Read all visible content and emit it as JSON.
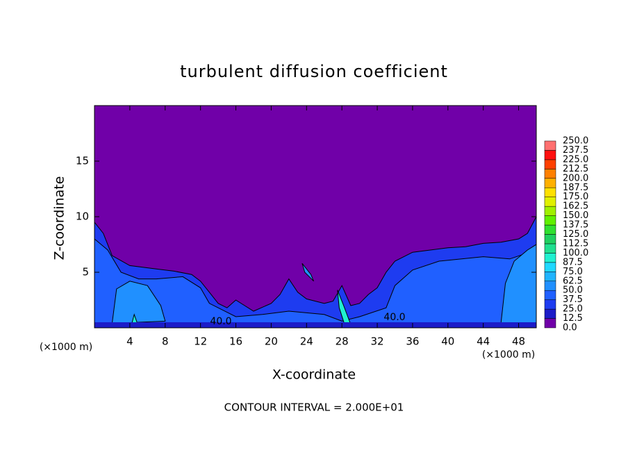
{
  "chart_data": {
    "type": "contour",
    "title": "turbulent diffusion coefficient",
    "x_label": "X-coordinate",
    "y_label": "Z-coordinate",
    "x_unit_left": "(×1000 m)",
    "x_unit_right": "(×1000 m)",
    "footer": "CONTOUR INTERVAL = 2.000E+01",
    "xlim": [
      0,
      50
    ],
    "ylim": [
      0,
      20
    ],
    "xticks": [
      4,
      8,
      12,
      16,
      20,
      24,
      28,
      32,
      36,
      40,
      44,
      48
    ],
    "yticks": [
      5,
      10,
      15
    ],
    "contour_labels": [
      "40.0",
      "40.0"
    ],
    "colorbar": {
      "levels": [
        {
          "value": 0,
          "label": "0.0"
        },
        12.5,
        {
          "value": 25,
          "label": "25.0"
        },
        37.5,
        {
          "value": 50,
          "label": "50.0"
        },
        62.5,
        {
          "value": 75,
          "label": "75.0"
        },
        87.5,
        {
          "value": 100,
          "label": "100.0"
        },
        112.5,
        {
          "value": 125,
          "label": "125.0"
        },
        137.5,
        {
          "value": 150,
          "label": "150.0"
        },
        162.5,
        {
          "value": 175,
          "label": "175.0"
        },
        187.5,
        {
          "value": 200,
          "label": "200.0"
        },
        212.5,
        {
          "value": 225,
          "label": "225.0"
        },
        237.5,
        {
          "value": 250,
          "label": "250.0"
        }
      ],
      "colors": [
        "#7000a8",
        "#1c1cc8",
        "#1e3cf0",
        "#2060ff",
        "#2090ff",
        "#20b4ff",
        "#20d8ff",
        "#20f0d0",
        "#20e090",
        "#20d060",
        "#30e030",
        "#60f000",
        "#a0f000",
        "#e0f000",
        "#ffe000",
        "#ffb000",
        "#ff8000",
        "#ff4000",
        "#ff1010",
        "#ff7070"
      ]
    }
  }
}
